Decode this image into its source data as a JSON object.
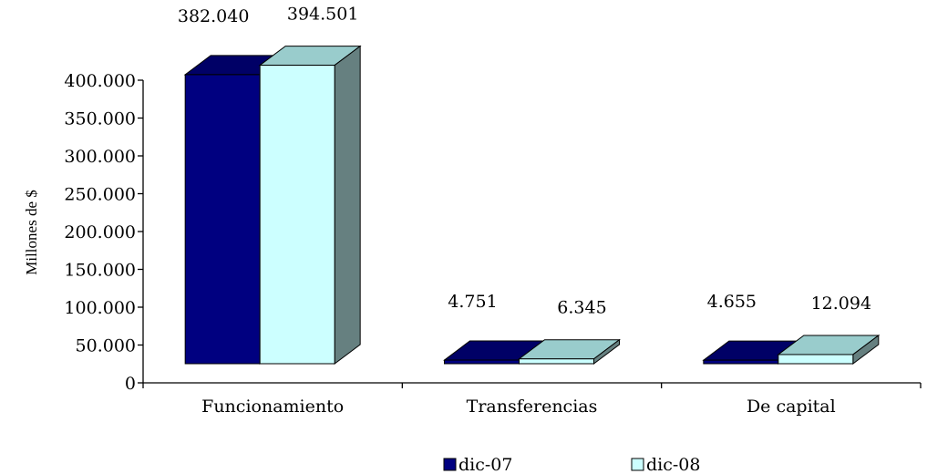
{
  "chart_data": {
    "type": "bar",
    "title": "",
    "xlabel": "",
    "ylabel": "Millones de $",
    "categories": [
      "Funcionamiento",
      "Transferencias",
      "De capital"
    ],
    "series": [
      {
        "name": "dic-07",
        "values": [
          382040,
          4751,
          4655
        ],
        "value_labels": [
          "382.040",
          "4.751",
          "4.655"
        ],
        "color": "#000080"
      },
      {
        "name": "dic-08",
        "values": [
          394501,
          6345,
          12094
        ],
        "value_labels": [
          "394.501",
          "6.345",
          "12.094"
        ],
        "color": "#CCFFFF"
      }
    ],
    "ylim": [
      0,
      400000
    ],
    "yticks": [
      0,
      50000,
      100000,
      150000,
      200000,
      250000,
      300000,
      350000,
      400000
    ],
    "ytick_labels": [
      "0",
      "50.000",
      "100.000",
      "150.000",
      "200.000",
      "250.000",
      "300.000",
      "350.000",
      "400.000"
    ],
    "legend_position": "bottom",
    "grid": false,
    "style": "3d-bar",
    "colors": {
      "dic07_front": "#000080",
      "dic07_top": "#000066",
      "dic07_side": "#00004D",
      "dic08_front": "#CCFFFF",
      "dic08_top": "#99CCCC",
      "dic08_side": "#668080",
      "outline": "#000000"
    }
  }
}
